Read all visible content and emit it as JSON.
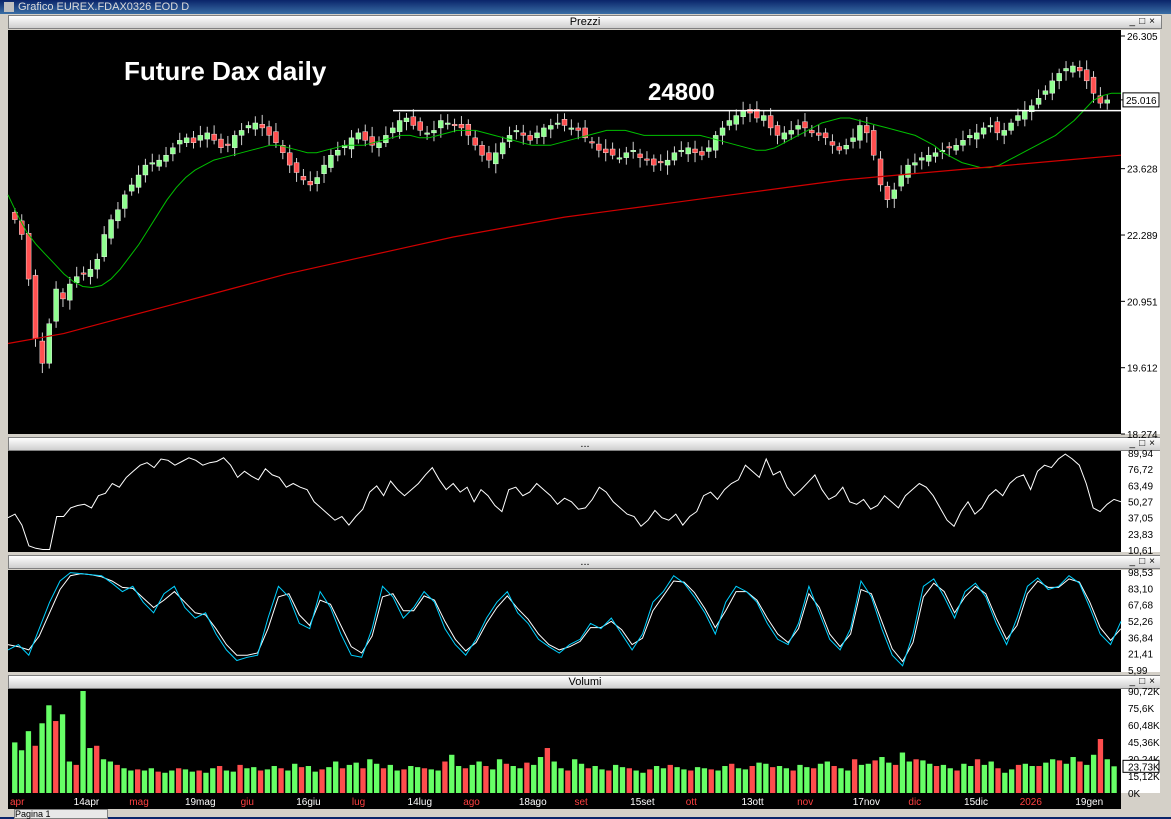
{
  "window": {
    "title": "Grafico EUREX.FDAX0326 EOD D",
    "bottom_tab": "Pagina 1"
  },
  "panels": {
    "price": {
      "header": "Prezzi",
      "title_annotation": "Future Dax daily",
      "level_label": "24800",
      "level": 24800,
      "last_price_label": "25.016"
    },
    "osc1": {
      "header": "...",
      "last_value_label": ""
    },
    "osc2": {
      "header": "..."
    },
    "volume": {
      "header": "Volumi",
      "last_value_label": "23,73K"
    }
  },
  "chart_data": [
    {
      "type": "candlestick",
      "name": "price",
      "y_ticks": [
        "26.305",
        "25.016",
        "23.628",
        "22.289",
        "20.951",
        "19.612",
        "18.274"
      ],
      "y_tick_values": [
        26305,
        25016,
        23628,
        22289,
        20951,
        19612,
        18274
      ],
      "ylim": [
        18274,
        26305
      ],
      "x_tick_labels": [
        "apr",
        "14apr",
        "mag",
        "19mag",
        "giu",
        "16giu",
        "lug",
        "14lug",
        "ago",
        "18ago",
        "set",
        "15set",
        "ott",
        "13ott",
        "nov",
        "17nov",
        "dic",
        "15dic",
        "2026",
        "19gen"
      ],
      "closes": [
        22600,
        22300,
        21400,
        20200,
        19700,
        20500,
        21200,
        21000,
        21300,
        21450,
        21500,
        21600,
        21800,
        22300,
        22600,
        22800,
        23100,
        23300,
        23500,
        23700,
        23750,
        23800,
        23900,
        24050,
        24200,
        24250,
        24150,
        24300,
        24350,
        24200,
        24050,
        24100,
        24300,
        24400,
        24500,
        24550,
        24450,
        24300,
        24150,
        23950,
        23700,
        23550,
        23400,
        23300,
        23450,
        23700,
        23900,
        24000,
        24100,
        24250,
        24350,
        24200,
        24100,
        24150,
        24300,
        24450,
        24600,
        24650,
        24500,
        24400,
        24350,
        24400,
        24600,
        24550,
        24500,
        24450,
        24300,
        24100,
        23900,
        23800,
        23950,
        24150,
        24300,
        24400,
        24300,
        24200,
        24350,
        24450,
        24500,
        24550,
        24500,
        24450,
        24400,
        24250,
        24150,
        24000,
        23950,
        23900,
        23850,
        23950,
        24000,
        23850,
        23800,
        23700,
        23750,
        23800,
        23950,
        24000,
        24050,
        23950,
        23900,
        24050,
        24300,
        24450,
        24600,
        24700,
        24800,
        24750,
        24650,
        24700,
        24450,
        24300,
        24350,
        24400,
        24500,
        24450,
        24350,
        24300,
        24250,
        24100,
        24000,
        24100,
        24250,
        24500,
        24350,
        23900,
        23300,
        23000,
        23200,
        23500,
        23700,
        23750,
        23850,
        23900,
        23950,
        24000,
        24050,
        24100,
        24200,
        24300,
        24350,
        24450,
        24500,
        24350,
        24400,
        24550,
        24700,
        24800,
        24900,
        25050,
        25200,
        25400,
        25550,
        25650,
        25700,
        25600,
        25400,
        25150,
        24950,
        25016
      ],
      "ma_short": [
        23100,
        22700,
        22350,
        22100,
        21900,
        21700,
        21500,
        21350,
        21250,
        21230,
        21270,
        21400,
        21600,
        21850,
        22100,
        22400,
        22700,
        23000,
        23250,
        23450,
        23600,
        23700,
        23800,
        23850,
        23900,
        23950,
        24000,
        24050,
        24100,
        24100,
        24050,
        24000,
        23950,
        23950,
        24000,
        24050,
        24100,
        24100,
        24100,
        24150,
        24200,
        24250,
        24300,
        24300,
        24250,
        24250,
        24300,
        24350,
        24400,
        24400,
        24400,
        24350,
        24300,
        24250,
        24200,
        24150,
        24100,
        24100,
        24100,
        24150,
        24200,
        24250,
        24300,
        24350,
        24400,
        24400,
        24400,
        24350,
        24300,
        24300,
        24300,
        24300,
        24300,
        24300,
        24300,
        24250,
        24200,
        24150,
        24100,
        24050,
        24000,
        24000,
        24050,
        24150,
        24250,
        24350,
        24450,
        24550,
        24600,
        24650,
        24650,
        24600,
        24550,
        24500,
        24450,
        24400,
        24350,
        24300,
        24200,
        24100,
        23950,
        23850,
        23750,
        23700,
        23650,
        23650,
        23700,
        23800,
        23900,
        24000,
        24100,
        24200,
        24300,
        24450,
        24600,
        24800,
        25000,
        25100,
        25150,
        25150
      ],
      "ma_long": [
        20100,
        20300,
        20600,
        20900,
        21200,
        21500,
        21750,
        22000,
        22250,
        22450,
        22650,
        22800,
        22950,
        23100,
        23250,
        23400,
        23500,
        23600,
        23700,
        23800,
        23900
      ],
      "series": [
        {
          "name": "",
          "values": []
        }
      ]
    },
    {
      "type": "line",
      "name": "oscillator-1",
      "y_ticks": [
        "89,94",
        "76,72",
        "63,49",
        "50,27",
        "37,05",
        "23,83",
        "10,61"
      ],
      "ylim": [
        10.61,
        89.94
      ],
      "values": [
        37,
        40,
        31,
        14,
        12,
        11,
        11,
        38,
        38,
        45,
        47,
        48,
        45,
        55,
        57,
        65,
        62,
        70,
        75,
        80,
        82,
        78,
        85,
        84,
        80,
        83,
        86,
        84,
        80,
        82,
        83,
        86,
        80,
        70,
        75,
        71,
        68,
        77,
        72,
        70,
        62,
        65,
        62,
        60,
        50,
        45,
        40,
        35,
        38,
        31,
        38,
        44,
        58,
        63,
        55,
        67,
        60,
        55,
        60,
        65,
        72,
        78,
        68,
        60,
        65,
        58,
        62,
        50,
        60,
        55,
        47,
        42,
        60,
        62,
        55,
        58,
        65,
        60,
        55,
        48,
        53,
        50,
        44,
        45,
        52,
        62,
        58,
        50,
        45,
        40,
        38,
        30,
        35,
        43,
        37,
        35,
        40,
        31,
        38,
        42,
        55,
        58,
        52,
        60,
        65,
        68,
        80,
        75,
        70,
        85,
        72,
        75,
        62,
        55,
        60,
        66,
        72,
        60,
        52,
        55,
        62,
        50,
        48,
        52,
        44,
        47,
        55,
        50,
        45,
        55,
        60,
        65,
        62,
        55,
        45,
        35,
        30,
        42,
        50,
        40,
        45,
        55,
        60,
        55,
        65,
        70,
        72,
        60,
        75,
        80,
        78,
        85,
        89,
        85,
        80,
        65,
        45,
        42,
        48,
        52,
        50
      ]
    },
    {
      "type": "line",
      "name": "stochastic",
      "y_ticks": [
        "98,53",
        "83,10",
        "67,68",
        "52,26",
        "36,84",
        "21,41",
        "5,99"
      ],
      "ylim": [
        5.99,
        98.53
      ],
      "k": [
        25,
        30,
        20,
        45,
        70,
        90,
        98,
        97,
        96,
        95,
        88,
        80,
        85,
        70,
        60,
        78,
        85,
        65,
        55,
        60,
        40,
        25,
        15,
        18,
        20,
        55,
        85,
        75,
        50,
        45,
        80,
        65,
        40,
        20,
        18,
        45,
        85,
        75,
        55,
        65,
        80,
        70,
        45,
        30,
        20,
        35,
        55,
        70,
        80,
        60,
        50,
        35,
        28,
        22,
        30,
        35,
        50,
        45,
        55,
        40,
        25,
        40,
        70,
        80,
        95,
        88,
        75,
        60,
        40,
        70,
        85,
        80,
        70,
        50,
        35,
        30,
        50,
        85,
        60,
        35,
        25,
        45,
        90,
        75,
        45,
        20,
        10,
        40,
        85,
        92,
        75,
        55,
        80,
        88,
        75,
        50,
        30,
        55,
        85,
        93,
        82,
        85,
        95,
        88,
        65,
        40,
        30,
        52
      ],
      "d": [
        30,
        28,
        25,
        38,
        60,
        82,
        95,
        97,
        96,
        94,
        90,
        84,
        83,
        74,
        65,
        72,
        80,
        70,
        60,
        58,
        45,
        30,
        20,
        20,
        22,
        45,
        75,
        78,
        58,
        48,
        72,
        68,
        48,
        28,
        22,
        38,
        75,
        78,
        62,
        62,
        76,
        72,
        52,
        35,
        24,
        32,
        50,
        65,
        76,
        64,
        54,
        40,
        30,
        25,
        28,
        33,
        46,
        46,
        52,
        44,
        30,
        36,
        62,
        76,
        90,
        89,
        79,
        64,
        46,
        62,
        80,
        80,
        72,
        55,
        40,
        32,
        45,
        78,
        65,
        40,
        28,
        40,
        82,
        78,
        52,
        26,
        14,
        32,
        75,
        88,
        80,
        60,
        75,
        85,
        78,
        55,
        35,
        48,
        78,
        90,
        84,
        84,
        92,
        89,
        70,
        46,
        34,
        45
      ]
    },
    {
      "type": "bar",
      "name": "volume",
      "y_ticks": [
        "90,72K",
        "75,6K",
        "60,48K",
        "45,36K",
        "30,24K",
        "23,73K",
        "15,12K",
        "0K"
      ],
      "ylim": [
        0,
        90720
      ],
      "values": [
        45000,
        38000,
        55000,
        42000,
        62000,
        78000,
        64000,
        70000,
        28000,
        25000,
        90720,
        40000,
        42000,
        30000,
        28000,
        25000,
        22000,
        20000,
        21000,
        20000,
        22000,
        19000,
        18000,
        20000,
        22000,
        21000,
        19000,
        20000,
        18000,
        22000,
        24000,
        20000,
        19000,
        25000,
        22000,
        23000,
        20000,
        21000,
        24000,
        22000,
        20000,
        26000,
        23000,
        24000,
        19000,
        21000,
        23000,
        28000,
        22000,
        25000,
        27000,
        22000,
        30000,
        26000,
        22000,
        25000,
        20000,
        21000,
        24000,
        23000,
        22000,
        21000,
        20000,
        28000,
        34000,
        24000,
        22000,
        25000,
        28000,
        24000,
        21000,
        30000,
        26000,
        24000,
        22000,
        27000,
        25000,
        32000,
        40000,
        28000,
        22000,
        20000,
        30000,
        26000,
        22000,
        24000,
        21000,
        20000,
        25000,
        23000,
        22000,
        20000,
        18000,
        21000,
        24000,
        22000,
        25000,
        23000,
        21000,
        20000,
        23000,
        22000,
        21000,
        20000,
        24000,
        26000,
        22000,
        21000,
        24000,
        27000,
        26000,
        23000,
        24000,
        22000,
        20000,
        25000,
        23000,
        22000,
        26000,
        28000,
        24000,
        22000,
        20000,
        30000,
        25000,
        26000,
        29000,
        32000,
        27000,
        25000,
        36000,
        28000,
        30000,
        29000,
        26000,
        24000,
        25000,
        22000,
        20000,
        26000,
        24000,
        30000,
        25000,
        28000,
        22000,
        18000,
        21000,
        25000,
        26000,
        24000,
        24000,
        27000,
        30000,
        29000,
        26000,
        32000,
        28000,
        25000,
        34000,
        48000,
        30000,
        23730
      ],
      "bar_up_color": "#66ff66",
      "bar_down_color": "#ff4d4d"
    }
  ],
  "colors": {
    "background": "#000000",
    "ma_short": "#00c000",
    "ma_long": "#d00000",
    "osc_line": "#ffffff",
    "stoch_k": "#00d0ff",
    "stoch_d": "#ffffff",
    "candle_up": "#90ff90",
    "candle_down": "#ff5050",
    "level_line": "#ffffff"
  }
}
